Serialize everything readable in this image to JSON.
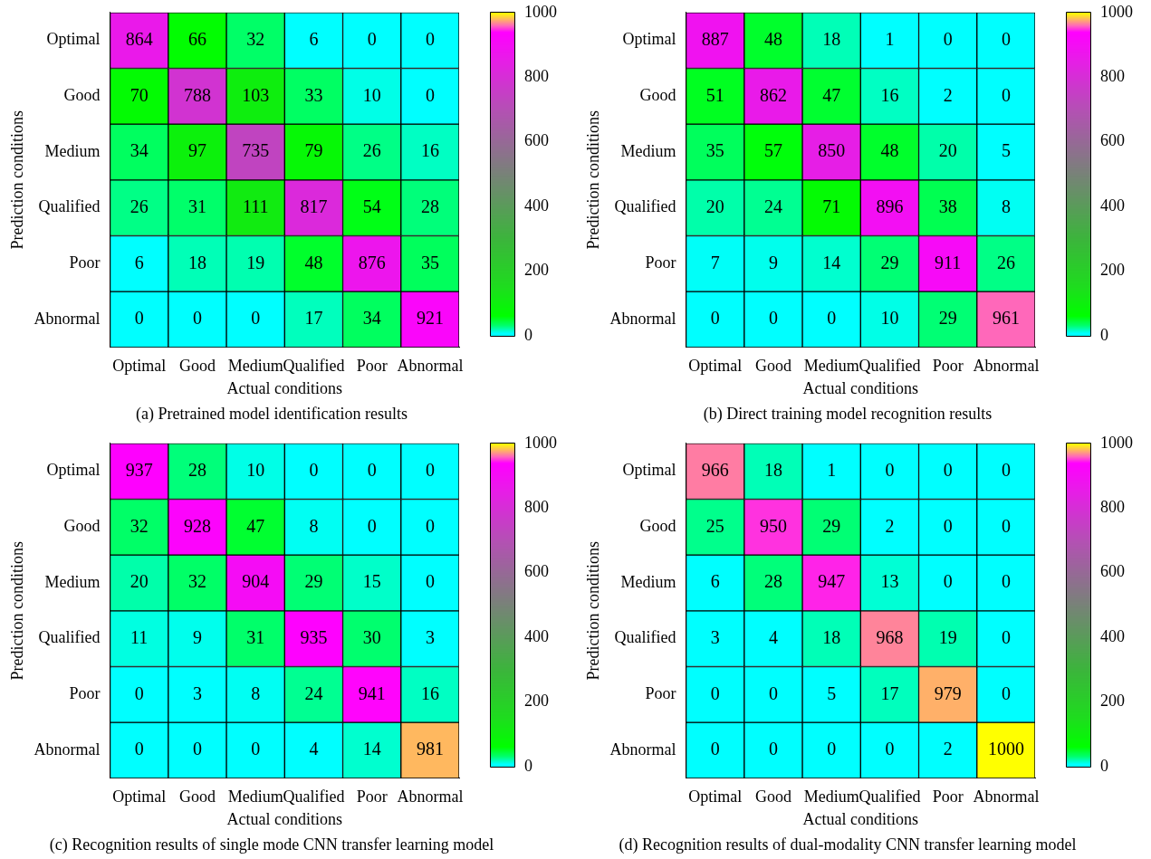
{
  "chart_data": [
    {
      "type": "heatmap",
      "title": "(a) Pretrained model identification results",
      "xlabel": "Actual conditions",
      "ylabel": "Prediction conditions",
      "categories": [
        "Optimal",
        "Good",
        "Medium",
        "Qualified",
        "Poor",
        "Abnormal"
      ],
      "y_categories": [
        "Optimal",
        "Good",
        "Medium",
        "Qualified",
        "Poor",
        "Abnormal"
      ],
      "cells": [
        [
          864,
          66,
          32,
          6,
          0,
          0
        ],
        [
          70,
          788,
          103,
          33,
          10,
          0
        ],
        [
          34,
          97,
          735,
          79,
          26,
          16
        ],
        [
          26,
          31,
          111,
          817,
          54,
          28
        ],
        [
          6,
          18,
          19,
          48,
          876,
          35
        ],
        [
          0,
          0,
          0,
          17,
          34,
          921
        ]
      ],
      "clim": [
        0,
        1000
      ],
      "cticks": [
        0,
        200,
        400,
        600,
        800,
        1000
      ],
      "data_labels": true
    },
    {
      "type": "heatmap",
      "title": "(b) Direct training model recognition results",
      "xlabel": "Actual conditions",
      "ylabel": "Prediction conditions",
      "categories": [
        "Optimal",
        "Good",
        "Medium",
        "Qualified",
        "Poor",
        "Abnormal"
      ],
      "y_categories": [
        "Optimal",
        "Good",
        "Medium",
        "Qualified",
        "Poor",
        "Abnormal"
      ],
      "cells": [
        [
          887,
          48,
          18,
          1,
          0,
          0
        ],
        [
          51,
          862,
          47,
          16,
          2,
          0
        ],
        [
          35,
          57,
          850,
          48,
          20,
          5
        ],
        [
          20,
          24,
          71,
          896,
          38,
          8
        ],
        [
          7,
          9,
          14,
          29,
          911,
          26
        ],
        [
          0,
          0,
          0,
          10,
          29,
          961
        ]
      ],
      "clim": [
        0,
        1000
      ],
      "cticks": [
        0,
        200,
        400,
        600,
        800,
        1000
      ],
      "data_labels": true
    },
    {
      "type": "heatmap",
      "title": "(c) Recognition results of single mode CNN transfer learning model",
      "xlabel": "Actual conditions",
      "ylabel": "Prediction conditions",
      "categories": [
        "Optimal",
        "Good",
        "Medium",
        "Qualified",
        "Poor",
        "Abnormal"
      ],
      "y_categories": [
        "Optimal",
        "Good",
        "Medium",
        "Qualified",
        "Poor",
        "Abnormal"
      ],
      "cells": [
        [
          937,
          28,
          10,
          0,
          0,
          0
        ],
        [
          32,
          928,
          47,
          8,
          0,
          0
        ],
        [
          20,
          32,
          904,
          29,
          15,
          0
        ],
        [
          11,
          9,
          31,
          935,
          30,
          3
        ],
        [
          0,
          3,
          8,
          24,
          941,
          16
        ],
        [
          0,
          0,
          0,
          4,
          14,
          981
        ]
      ],
      "clim": [
        0,
        1000
      ],
      "cticks": [
        0,
        200,
        400,
        600,
        800,
        1000
      ],
      "data_labels": true
    },
    {
      "type": "heatmap",
      "title": "(d) Recognition results of dual-modality CNN transfer learning model",
      "xlabel": "Actual conditions",
      "ylabel": "Prediction conditions",
      "categories": [
        "Optimal",
        "Good",
        "Medium",
        "Qualified",
        "Poor",
        "Abnormal"
      ],
      "y_categories": [
        "Optimal",
        "Good",
        "Medium",
        "Qualified",
        "Poor",
        "Abnormal"
      ],
      "cells": [
        [
          966,
          18,
          1,
          0,
          0,
          0
        ],
        [
          25,
          950,
          29,
          2,
          0,
          0
        ],
        [
          6,
          28,
          947,
          13,
          0,
          0
        ],
        [
          3,
          4,
          18,
          968,
          19,
          0
        ],
        [
          0,
          0,
          5,
          17,
          979,
          0
        ],
        [
          0,
          0,
          0,
          0,
          2,
          1000
        ]
      ],
      "clim": [
        0,
        1000
      ],
      "cticks": [
        0,
        200,
        400,
        600,
        800,
        1000
      ],
      "data_labels": true
    }
  ]
}
